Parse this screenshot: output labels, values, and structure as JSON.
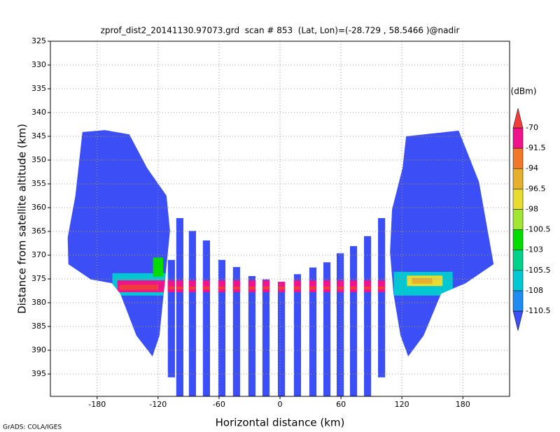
{
  "chart_data": {
    "type": "swath",
    "title": "zprof_dist2_20141130.97073.grd  scan # 853  (Lat, Lon)=(-28.729 , 58.5466 )@nadir",
    "xlabel": "Horizontal distance (km)",
    "ylabel": "Distance from satellite altitude (km)",
    "footer": "GrADS: COLA/IGES",
    "xlim": [
      -226,
      226
    ],
    "ylim": [
      325,
      399.7
    ],
    "xticks": [
      -180,
      -120,
      -60,
      0,
      60,
      120,
      180
    ],
    "yticks": [
      325,
      330,
      335,
      340,
      345,
      350,
      355,
      360,
      365,
      370,
      375,
      380,
      385,
      390,
      395
    ],
    "grid": true,
    "colorbar": {
      "label": "(dBm)",
      "levels": [
        -110.5,
        -108,
        -105.5,
        -103,
        -100.5,
        -98,
        -96.5,
        -94,
        -91.5,
        -70
      ],
      "colors": [
        "#3c4ef5",
        "#1e8cf0",
        "#00c8d2",
        "#00d28c",
        "#00dc00",
        "#a0e632",
        "#e6dc32",
        "#e6af2d",
        "#f07828",
        "#f0148c",
        "#f03c3c"
      ]
    },
    "fans": [
      {
        "value": -112,
        "x": [
          -194.5,
          -172.4,
          -148.3,
          -131.0,
          -111.7,
          -108.3,
          -111.7,
          -115.9,
          -118.6,
          -125.5,
          -141.4,
          -157.2,
          -165.5,
          -186.2,
          -208.3,
          -209.0,
          -201.4
        ],
        "y": [
          344.1,
          343.7,
          344.6,
          351.6,
          357.5,
          364.9,
          372.2,
          381.0,
          386.9,
          391.3,
          386.9,
          378.1,
          375.9,
          375.1,
          371.9,
          366.3,
          357.5
        ]
      },
      {
        "value": -112,
        "x": [
          124.1,
          175.9,
          195.9,
          210.3,
          182.8,
          158.6,
          141.4,
          126.2,
          118.6,
          111.7,
          108.3,
          110.3,
          120.7
        ],
        "y": [
          345.0,
          343.8,
          354.6,
          371.9,
          375.9,
          378.1,
          386.9,
          391.3,
          386.9,
          378.1,
          369.3,
          360.4,
          351.6
        ]
      }
    ],
    "beam_width": 7,
    "beams": [
      {
        "x": -106.9,
        "top": 371.0,
        "bottom": 395.7,
        "value": -112
      },
      {
        "x": -98.6,
        "top": 362.2,
        "bottom": 399.7,
        "value": -112
      },
      {
        "x": -86.2,
        "top": 364.9,
        "bottom": 399.7,
        "value": -112
      },
      {
        "x": -72.4,
        "top": 366.9,
        "bottom": 399.7,
        "value": -112
      },
      {
        "x": -57.2,
        "top": 371.0,
        "bottom": 399.7,
        "value": -112
      },
      {
        "x": -42.8,
        "top": 372.5,
        "bottom": 399.7,
        "value": -112
      },
      {
        "x": -27.6,
        "top": 374.4,
        "bottom": 399.7,
        "value": -112
      },
      {
        "x": -13.8,
        "top": 375.1,
        "bottom": 399.7,
        "value": -112
      },
      {
        "x": 1.4,
        "top": 375.6,
        "bottom": 399.7,
        "value": -112
      },
      {
        "x": 17.2,
        "top": 374.0,
        "bottom": 399.7,
        "value": -112
      },
      {
        "x": 32.4,
        "top": 372.6,
        "bottom": 399.7,
        "value": -112
      },
      {
        "x": 46.2,
        "top": 371.5,
        "bottom": 399.7,
        "value": -112
      },
      {
        "x": 59.3,
        "top": 369.6,
        "bottom": 399.7,
        "value": -112
      },
      {
        "x": 72.4,
        "top": 368.1,
        "bottom": 399.7,
        "value": -112
      },
      {
        "x": 86.2,
        "top": 366.0,
        "bottom": 399.7,
        "value": -112
      },
      {
        "x": 100.0,
        "top": 362.2,
        "bottom": 395.7,
        "value": -112
      }
    ],
    "patches": [
      {
        "x": [
          -165,
          -110
        ],
        "y": [
          373.8,
          378.5
        ],
        "value": -107
      },
      {
        "x": [
          112,
          170
        ],
        "y": [
          373.5,
          378.5
        ],
        "value": -107
      },
      {
        "x": [
          -125,
          -115
        ],
        "y": [
          370.5,
          374.5
        ],
        "value": -102
      },
      {
        "x": [
          125,
          160
        ],
        "y": [
          374.3,
          376.5
        ],
        "value": -97
      },
      {
        "x": [
          130,
          150
        ],
        "y": [
          374.8,
          376.0
        ],
        "value": -95
      },
      {
        "x": [
          -160,
          105
        ],
        "y": [
          375.3,
          377.8
        ],
        "value": -85
      },
      {
        "x": [
          -158,
          -120
        ],
        "y": [
          376.2,
          377.3
        ],
        "value": -68
      },
      {
        "x": [
          -110,
          105
        ],
        "y": [
          376.6,
          377.2
        ],
        "value": -68
      }
    ]
  }
}
